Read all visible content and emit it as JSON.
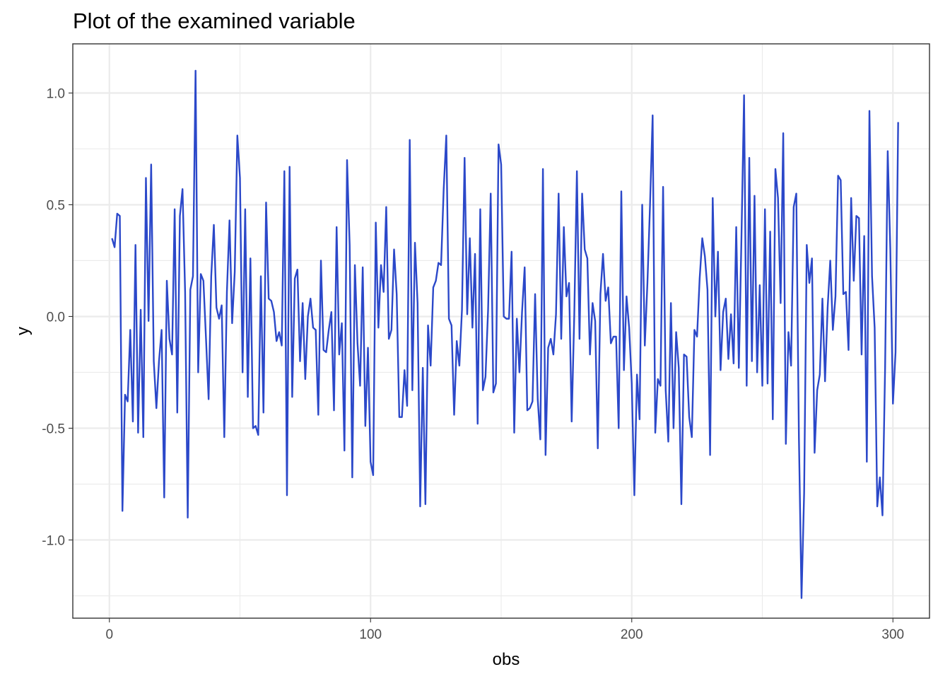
{
  "chart_data": {
    "type": "line",
    "title": "Plot of the examined variable",
    "xlabel": "obs",
    "ylabel": "y",
    "xlim": [
      -14,
      314
    ],
    "ylim": [
      -1.35,
      1.22
    ],
    "x_ticks": [
      0,
      100,
      200,
      300
    ],
    "x_tick_labels": [
      "0",
      "100",
      "200",
      "300"
    ],
    "y_ticks": [
      -1.0,
      -0.5,
      0.0,
      0.5,
      1.0
    ],
    "y_tick_labels": [
      "-1.0",
      "-0.5",
      "0.0",
      "0.5",
      "1.0"
    ],
    "grid": true,
    "legend": "none",
    "line_color": "#2b48c9",
    "series": [
      {
        "values": [
          0.35,
          0.31,
          0.46,
          0.45,
          -0.87,
          -0.35,
          -0.38,
          -0.06,
          -0.47,
          0.32,
          -0.52,
          0.03,
          -0.54,
          0.62,
          -0.02,
          0.68,
          -0.2,
          -0.41,
          -0.2,
          -0.06,
          -0.81,
          0.16,
          -0.1,
          -0.17,
          0.48,
          -0.43,
          0.45,
          0.57,
          0.11,
          -0.9,
          0.12,
          0.18,
          1.1,
          -0.25,
          0.19,
          0.16,
          -0.1,
          -0.37,
          0.18,
          0.41,
          0.04,
          -0.01,
          0.05,
          -0.54,
          0.11,
          0.43,
          -0.03,
          0.2,
          0.81,
          0.62,
          -0.25,
          0.48,
          -0.36,
          0.26,
          -0.5,
          -0.49,
          -0.53,
          0.18,
          -0.43,
          0.51,
          0.08,
          0.07,
          0.02,
          -0.11,
          -0.07,
          -0.13,
          0.65,
          -0.8,
          0.67,
          -0.36,
          0.17,
          0.21,
          -0.2,
          0.06,
          -0.28,
          0.0,
          0.08,
          -0.05,
          -0.06,
          -0.44,
          0.25,
          -0.15,
          -0.16,
          -0.06,
          0.02,
          -0.42,
          0.4,
          -0.17,
          -0.03,
          -0.6,
          0.7,
          0.32,
          -0.72,
          0.23,
          -0.12,
          -0.31,
          0.22,
          -0.49,
          -0.14,
          -0.65,
          -0.71,
          0.42,
          -0.05,
          0.23,
          0.11,
          0.49,
          -0.1,
          -0.06,
          0.3,
          0.1,
          -0.45,
          -0.45,
          -0.24,
          -0.4,
          0.79,
          -0.33,
          0.33,
          0.06,
          -0.85,
          -0.23,
          -0.84,
          -0.04,
          -0.22,
          0.13,
          0.16,
          0.24,
          0.23,
          0.57,
          0.81,
          -0.01,
          -0.04,
          -0.44,
          -0.11,
          -0.22,
          0.03,
          0.71,
          0.01,
          0.35,
          -0.05,
          0.28,
          -0.48,
          0.48,
          -0.33,
          -0.27,
          0.03,
          0.55,
          -0.34,
          -0.3,
          0.77,
          0.68,
          0.0,
          -0.01,
          -0.01,
          0.29,
          -0.52,
          -0.01,
          -0.25,
          0.02,
          0.22,
          -0.42,
          -0.41,
          -0.38,
          0.1,
          -0.37,
          -0.55,
          0.66,
          -0.62,
          -0.14,
          -0.1,
          -0.17,
          0.01,
          0.55,
          -0.1,
          0.4,
          0.09,
          0.15,
          -0.47,
          0.01,
          0.65,
          -0.1,
          0.55,
          0.3,
          0.26,
          -0.17,
          0.06,
          -0.02,
          -0.59,
          0.1,
          0.28,
          0.07,
          0.13,
          -0.12,
          -0.09,
          -0.09,
          -0.5,
          0.56,
          -0.24,
          0.09,
          -0.05,
          -0.3,
          -0.8,
          -0.26,
          -0.46,
          0.5,
          -0.13,
          0.15,
          0.5,
          0.9,
          -0.52,
          -0.28,
          -0.31,
          0.58,
          -0.33,
          -0.56,
          0.06,
          -0.5,
          -0.07,
          -0.23,
          -0.84,
          -0.17,
          -0.18,
          -0.45,
          -0.54,
          -0.06,
          -0.09,
          0.17,
          0.35,
          0.27,
          0.12,
          -0.62,
          0.53,
          0.0,
          0.29,
          -0.24,
          0.02,
          0.08,
          -0.19,
          0.01,
          -0.21,
          0.4,
          -0.23,
          0.35,
          0.99,
          -0.31,
          0.71,
          -0.2,
          0.54,
          -0.25,
          0.14,
          -0.31,
          0.48,
          -0.3,
          0.38,
          -0.46,
          0.66,
          0.53,
          0.06,
          0.82,
          -0.57,
          -0.07,
          -0.22,
          0.49,
          0.55,
          -0.54,
          -1.26,
          -0.79,
          0.32,
          0.15,
          0.26,
          -0.61,
          -0.33,
          -0.26,
          0.08,
          -0.29,
          0.04,
          0.25,
          -0.06,
          0.09,
          0.63,
          0.61,
          0.1,
          0.11,
          -0.15,
          0.53,
          0.16,
          0.45,
          0.44,
          -0.17,
          0.36,
          -0.65,
          0.92,
          0.18,
          -0.05,
          -0.85,
          -0.72,
          -0.89,
          -0.23,
          0.74,
          0.3,
          -0.39,
          -0.16,
          0.87
        ]
      }
    ]
  }
}
